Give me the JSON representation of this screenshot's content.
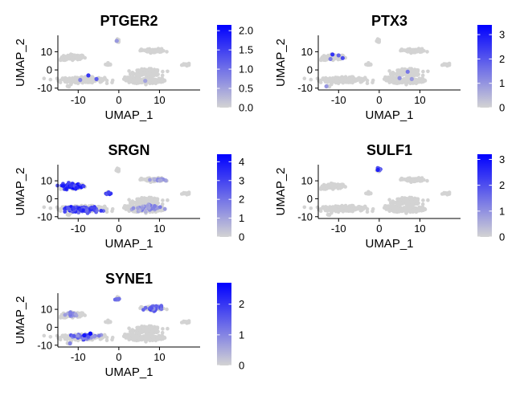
{
  "chart_data": [
    {
      "type": "scatter",
      "title": "PTGER2",
      "xlabel": "UMAP_1",
      "ylabel": "UMAP_2",
      "xticks": [
        -10,
        0,
        10
      ],
      "yticks": [
        -10,
        0,
        10
      ],
      "xlim": [
        -15,
        20
      ],
      "ylim": [
        -11,
        19
      ],
      "legend": {
        "ticks": [
          "0.0",
          "0.5",
          "1.0",
          "1.5",
          "2.0"
        ],
        "tick_values": [
          0,
          0.5,
          1.0,
          1.5,
          2.0
        ],
        "max": 2.15,
        "low_color": "#d3d3d3",
        "high_color": "#0000ff"
      },
      "highlights": [
        {
          "x": -7.5,
          "y": -3.0,
          "v": 1.6
        },
        {
          "x": -5.5,
          "y": -5.0,
          "v": 1.2
        },
        {
          "x": -9.5,
          "y": -5.5,
          "v": 0.8
        },
        {
          "x": -0.5,
          "y": 16.0,
          "v": 0.6
        },
        {
          "x": 6.5,
          "y": -6.0,
          "v": 0.5
        }
      ]
    },
    {
      "type": "scatter",
      "title": "PTX3",
      "xlabel": "UMAP_1",
      "ylabel": "UMAP_2",
      "xticks": [
        -10,
        0,
        10
      ],
      "yticks": [
        -10,
        0,
        10
      ],
      "xlim": [
        -15,
        20
      ],
      "ylim": [
        -11,
        19
      ],
      "legend": {
        "ticks": [
          "0",
          "1",
          "2",
          "3"
        ],
        "tick_values": [
          0,
          1,
          2,
          3
        ],
        "max": 3.4,
        "low_color": "#d3d3d3",
        "high_color": "#0000ff"
      },
      "highlights": [
        {
          "x": -11.5,
          "y": 8.5,
          "v": 2.6
        },
        {
          "x": -10.0,
          "y": 8.0,
          "v": 1.8
        },
        {
          "x": -12.0,
          "y": 6.0,
          "v": 1.4
        },
        {
          "x": -9.0,
          "y": 6.5,
          "v": 2.2
        },
        {
          "x": -13.0,
          "y": -9.0,
          "v": 1.0
        },
        {
          "x": 7.0,
          "y": -1.0,
          "v": 1.5
        },
        {
          "x": 5.0,
          "y": -4.5,
          "v": 1.1
        },
        {
          "x": 8.0,
          "y": -5.0,
          "v": 0.9
        }
      ]
    },
    {
      "type": "scatter",
      "title": "SRGN",
      "xlabel": "UMAP_1",
      "ylabel": "UMAP_2",
      "xticks": [
        -10,
        0,
        10
      ],
      "yticks": [
        -10,
        0,
        10
      ],
      "xlim": [
        -15,
        20
      ],
      "ylim": [
        -11,
        19
      ],
      "legend": {
        "ticks": [
          "0",
          "1",
          "2",
          "3",
          "4"
        ],
        "tick_values": [
          0,
          1,
          2,
          3,
          4
        ],
        "max": 4.4,
        "low_color": "#d3d3d3",
        "high_color": "#0000ff"
      },
      "dense_clusters": [
        {
          "cx": -11.5,
          "cy": 7.0,
          "rx": 3.0,
          "ry": 2.2,
          "n": 60,
          "v_min": 2.5,
          "v_max": 4.2
        },
        {
          "cx": -9.0,
          "cy": -6.0,
          "rx": 5.0,
          "ry": 1.8,
          "n": 110,
          "v_min": 2.0,
          "v_max": 4.0
        },
        {
          "cx": -2.5,
          "cy": 3.0,
          "rx": 1.0,
          "ry": 0.8,
          "n": 8,
          "v_min": 2.5,
          "v_max": 3.5
        },
        {
          "cx": 7.0,
          "cy": -5.0,
          "rx": 4.0,
          "ry": 2.5,
          "n": 50,
          "v_min": 0.6,
          "v_max": 2.0
        },
        {
          "cx": 9.5,
          "cy": 10.5,
          "rx": 2.0,
          "ry": 1.0,
          "n": 15,
          "v_min": 0.6,
          "v_max": 1.6
        }
      ],
      "highlights": []
    },
    {
      "type": "scatter",
      "title": "SULF1",
      "xlabel": "UMAP_1",
      "ylabel": "UMAP_2",
      "xticks": [
        -10,
        0,
        10
      ],
      "yticks": [
        -10,
        0,
        10
      ],
      "xlim": [
        -15,
        20
      ],
      "ylim": [
        -11,
        19
      ],
      "legend": {
        "ticks": [
          "0",
          "1",
          "2",
          "3"
        ],
        "tick_values": [
          0,
          1,
          2,
          3
        ],
        "max": 3.2,
        "low_color": "#d3d3d3",
        "high_color": "#0000ff"
      },
      "dense_clusters": [
        {
          "cx": 0.0,
          "cy": 16.5,
          "rx": 0.8,
          "ry": 0.9,
          "n": 10,
          "v_min": 1.5,
          "v_max": 3.0
        }
      ],
      "highlights": []
    },
    {
      "type": "scatter",
      "title": "SYNE1",
      "xlabel": "UMAP_1",
      "ylabel": "UMAP_2",
      "xticks": [
        -10,
        0,
        10
      ],
      "yticks": [
        -10,
        0,
        10
      ],
      "xlim": [
        -15,
        20
      ],
      "ylim": [
        -11,
        19
      ],
      "legend": {
        "ticks": [
          "0",
          "1",
          "2"
        ],
        "tick_values": [
          0,
          1,
          2
        ],
        "max": 2.7,
        "low_color": "#d3d3d3",
        "high_color": "#0000ff"
      },
      "dense_clusters": [
        {
          "cx": 8.5,
          "cy": 10.5,
          "rx": 3.0,
          "ry": 1.6,
          "n": 35,
          "v_min": 0.8,
          "v_max": 2.0
        },
        {
          "cx": -9.0,
          "cy": -5.0,
          "rx": 4.0,
          "ry": 1.8,
          "n": 40,
          "v_min": 0.6,
          "v_max": 2.0
        },
        {
          "cx": -0.5,
          "cy": 15.5,
          "rx": 0.8,
          "ry": 0.8,
          "n": 6,
          "v_min": 0.8,
          "v_max": 1.5
        },
        {
          "cx": -11.0,
          "cy": 7.0,
          "rx": 2.5,
          "ry": 1.5,
          "n": 15,
          "v_min": 0.5,
          "v_max": 1.2
        }
      ],
      "highlights": [
        {
          "x": -7.0,
          "y": -3.5,
          "v": 2.6
        },
        {
          "x": -8.5,
          "y": -4.5,
          "v": 2.4
        },
        {
          "x": -12.0,
          "y": -9.0,
          "v": 1.0
        }
      ]
    }
  ]
}
